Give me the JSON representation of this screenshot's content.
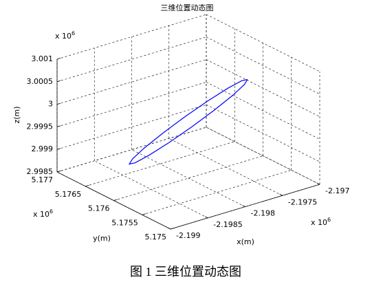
{
  "chart_data": {
    "type": "line3d",
    "title": "三维位置动态图",
    "xlabel": "x(m)",
    "ylabel": "y(m)",
    "zlabel": "z(m)",
    "x_exponent": {
      "text": "x 10",
      "sup": "6"
    },
    "y_exponent": {
      "text": "x 10",
      "sup": "6"
    },
    "z_exponent": {
      "text": "x 10",
      "sup": "6"
    },
    "xlim": [
      -2.199,
      -2.197
    ],
    "xticks": [
      -2.199,
      -2.1985,
      -2.198,
      -2.1975,
      -2.197
    ],
    "ylim": [
      5.175,
      5.177
    ],
    "yticks": [
      5.175,
      5.1755,
      5.176,
      5.1765,
      5.177
    ],
    "zlim": [
      2.9985,
      3.001
    ],
    "zticks": [
      2.9985,
      2.999,
      2.9995,
      3,
      3.0005,
      3.001
    ],
    "grid": true,
    "series": [
      {
        "color": "#0000ff",
        "x": [
          -2.197208,
          -2.197268,
          -2.19744,
          -2.197697,
          -2.198,
          -2.198303,
          -2.19856,
          -2.198732,
          -2.198792,
          -2.198732,
          -2.19856,
          -2.198303,
          -2.198,
          -2.197697,
          -2.19744,
          -2.197268,
          -2.197208
        ],
        "y": [
          5.176,
          5.175977,
          5.175958,
          5.175945,
          5.17594,
          5.175945,
          5.175958,
          5.175977,
          5.176,
          5.176023,
          5.176042,
          5.176055,
          5.17606,
          5.176055,
          5.176042,
          5.176023,
          5.176
        ],
        "z": [
          3.000295,
          3.000225,
          3.000082,
          2.99989,
          2.999675,
          2.999472,
          2.999312,
          2.999217,
          2.999205,
          2.999275,
          2.999418,
          2.99961,
          2.999825,
          3.000028,
          3.000188,
          3.000283,
          3.000295
        ]
      }
    ]
  },
  "caption": "图 1  三维位置动态图"
}
